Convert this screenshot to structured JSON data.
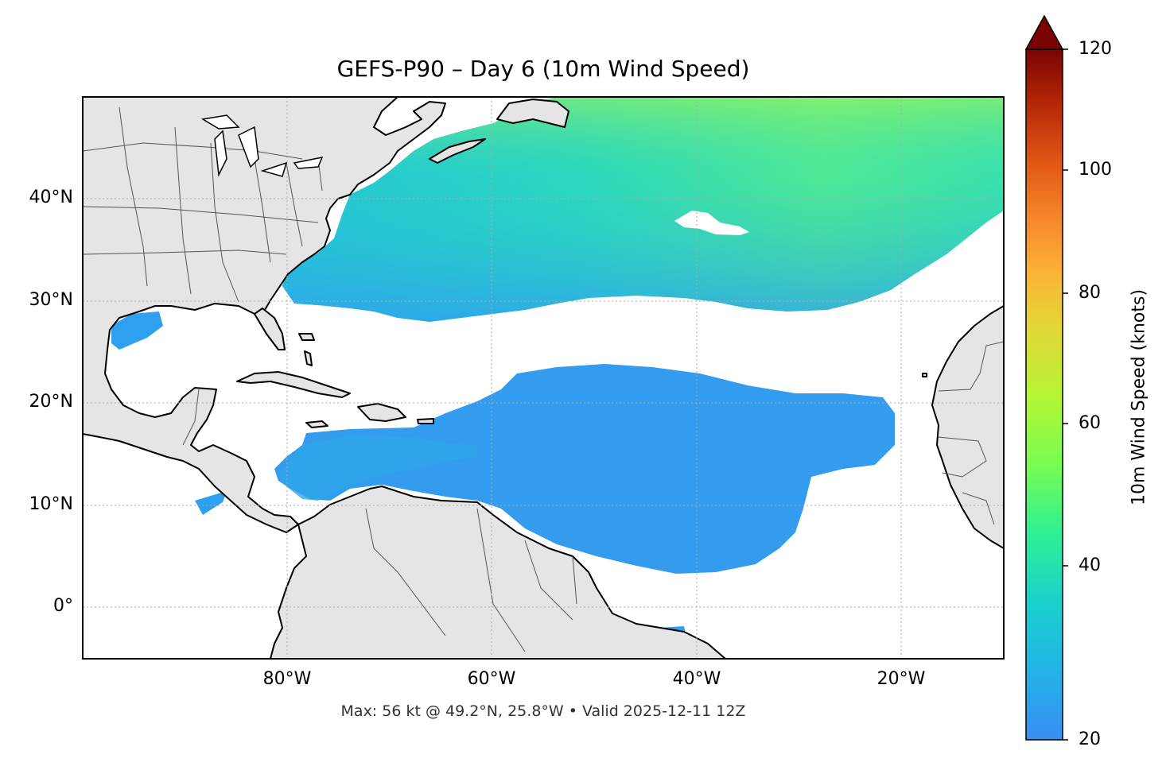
{
  "title": "GEFS-P90 – Day 6 (10m Wind Speed)",
  "footer": "Max: 56 kt @ 49.2°N, 25.8°W • Valid 2025-12-11 12Z",
  "map": {
    "extent": {
      "lon": [
        -100,
        -10
      ],
      "lat": [
        -5,
        50
      ]
    },
    "lat_ticks": [
      "0°",
      "10°N",
      "20°N",
      "30°N",
      "40°N"
    ],
    "lon_ticks": [
      "80°W",
      "60°W",
      "40°W",
      "20°W"
    ],
    "land_color": "#e5e5e5",
    "ocean_color": "#ffffff",
    "gridlines": true
  },
  "colorbar": {
    "label": "10m Wind Speed (knots)",
    "ticks": [
      "20",
      "40",
      "60",
      "80",
      "100",
      "120"
    ],
    "range": [
      20,
      120
    ],
    "extend": "max",
    "colormap": "turbo"
  }
}
